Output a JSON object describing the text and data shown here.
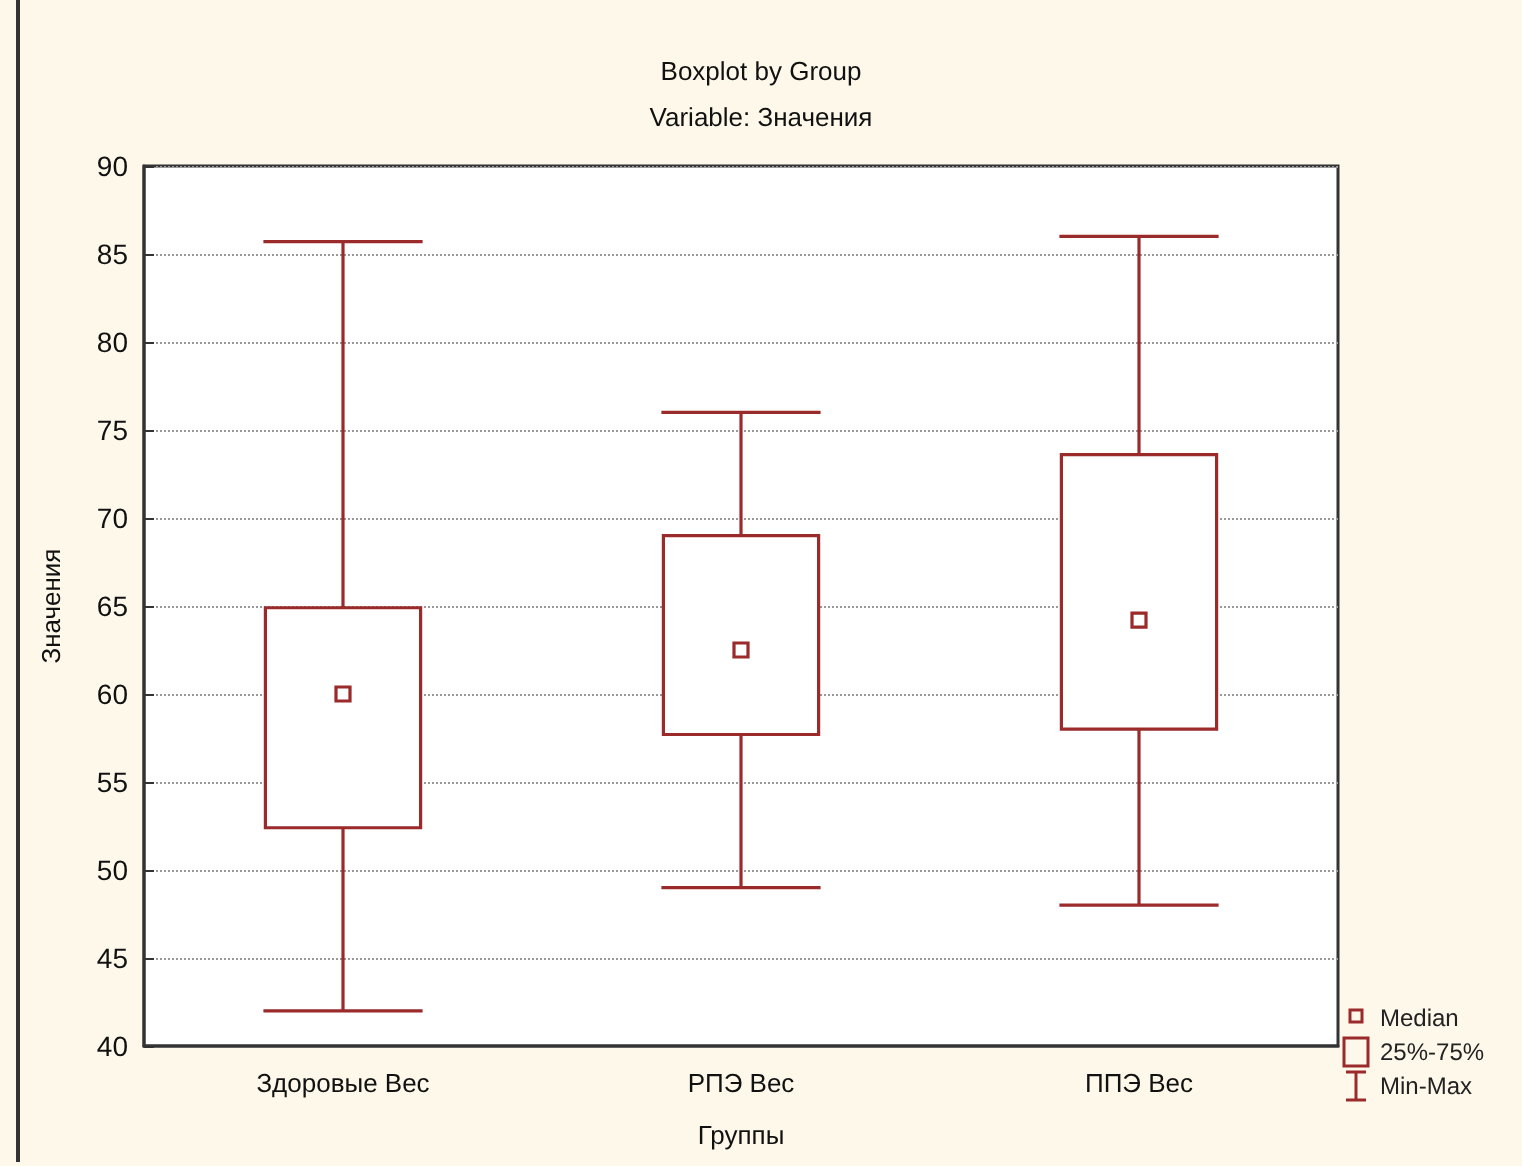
{
  "chart_data": {
    "type": "box",
    "title": "Boxplot by Group",
    "subtitle": "Variable: Значения",
    "xlabel": "Группы",
    "ylabel": "Значения",
    "categories": [
      "Здоровые Вес",
      "РПЭ Вес",
      "ППЭ Вес"
    ],
    "series": [
      {
        "color": "#9b2a2a",
        "boxes": [
          {
            "low": 42,
            "q1": 52.4,
            "median": 60,
            "q3": 64.9,
            "high": 85.7
          },
          {
            "low": 49,
            "q1": 57.7,
            "median": 62.5,
            "q3": 69,
            "high": 76
          },
          {
            "low": 48,
            "q1": 58,
            "median": 64.2,
            "q3": 73.6,
            "high": 86
          }
        ]
      }
    ],
    "ylim": [
      40,
      90
    ],
    "yticks": [
      40,
      45,
      50,
      55,
      60,
      65,
      70,
      75,
      80,
      85,
      90
    ],
    "grid": "y",
    "marker": "square",
    "annotations": [
      "Median",
      "25%-75%",
      "Min-Max"
    ]
  }
}
